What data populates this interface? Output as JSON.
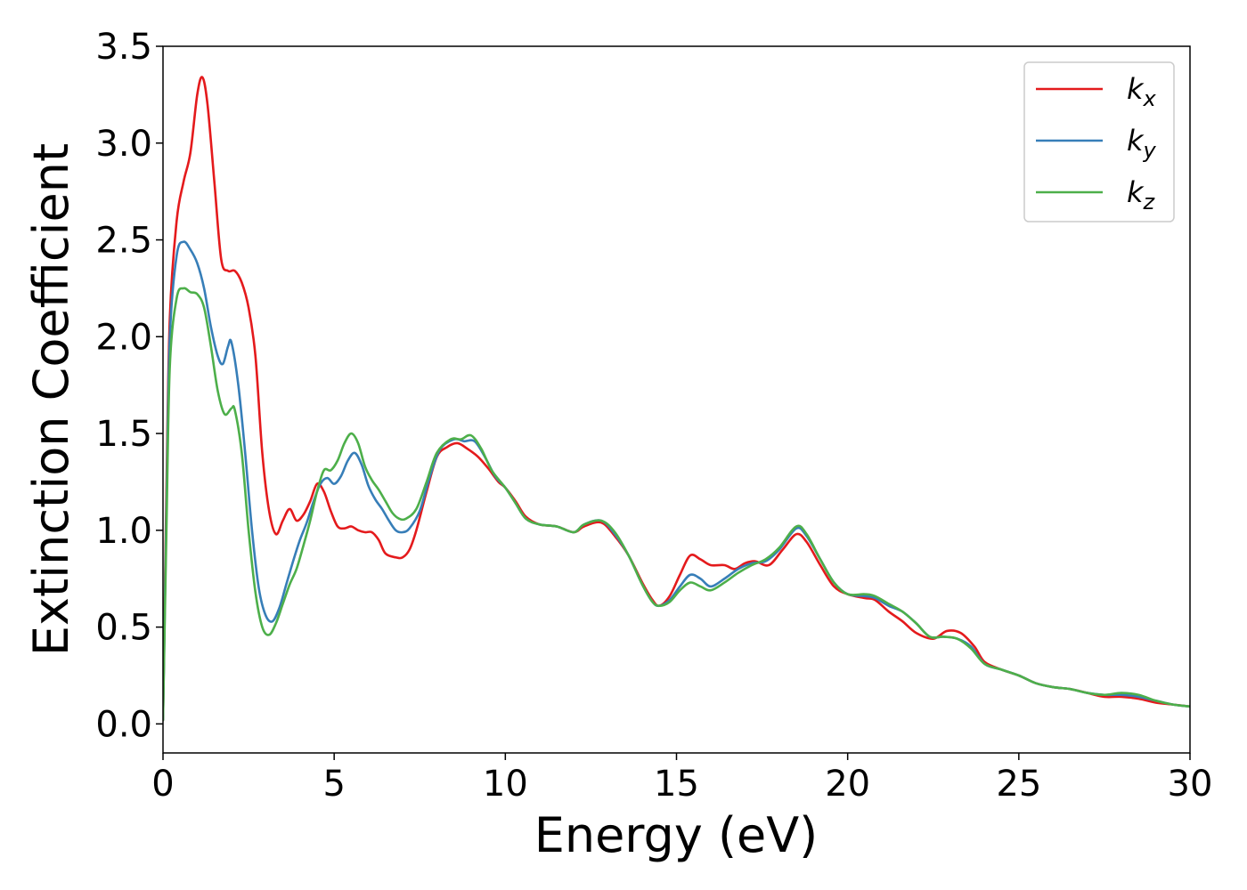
{
  "chart_data": {
    "type": "line",
    "xlabel": "Energy (eV)",
    "ylabel": "Extinction Coefficient",
    "xlim": [
      0,
      30
    ],
    "ylim": [
      -0.15,
      3.5
    ],
    "xticks": [
      0,
      5,
      10,
      15,
      20,
      25,
      30
    ],
    "yticks": [
      0.0,
      0.5,
      1.0,
      1.5,
      2.0,
      2.5,
      3.0,
      3.5
    ],
    "xtick_labels": [
      "0",
      "5",
      "10",
      "15",
      "20",
      "25",
      "30"
    ],
    "ytick_labels": [
      "0.0",
      "0.5",
      "1.0",
      "1.5",
      "2.0",
      "2.5",
      "3.0",
      "3.5"
    ],
    "grid": false,
    "legend_position": "top-right",
    "series": [
      {
        "name": "k",
        "subscript": "x",
        "color": "#e41a1c",
        "points": [
          [
            0,
            0.02
          ],
          [
            0.1,
            1.2
          ],
          [
            0.2,
            2.1
          ],
          [
            0.4,
            2.6
          ],
          [
            0.6,
            2.8
          ],
          [
            0.8,
            2.95
          ],
          [
            1.0,
            3.25
          ],
          [
            1.15,
            3.34
          ],
          [
            1.3,
            3.2
          ],
          [
            1.5,
            2.8
          ],
          [
            1.7,
            2.4
          ],
          [
            1.9,
            2.34
          ],
          [
            2.1,
            2.34
          ],
          [
            2.3,
            2.28
          ],
          [
            2.5,
            2.15
          ],
          [
            2.7,
            1.9
          ],
          [
            2.9,
            1.4
          ],
          [
            3.1,
            1.1
          ],
          [
            3.3,
            0.98
          ],
          [
            3.5,
            1.05
          ],
          [
            3.7,
            1.11
          ],
          [
            3.9,
            1.05
          ],
          [
            4.1,
            1.08
          ],
          [
            4.3,
            1.15
          ],
          [
            4.5,
            1.24
          ],
          [
            4.7,
            1.2
          ],
          [
            4.9,
            1.1
          ],
          [
            5.1,
            1.02
          ],
          [
            5.3,
            1.01
          ],
          [
            5.5,
            1.02
          ],
          [
            5.7,
            1.0
          ],
          [
            5.9,
            0.99
          ],
          [
            6.1,
            0.99
          ],
          [
            6.3,
            0.95
          ],
          [
            6.5,
            0.88
          ],
          [
            6.8,
            0.86
          ],
          [
            7.0,
            0.86
          ],
          [
            7.2,
            0.9
          ],
          [
            7.4,
            1.0
          ],
          [
            7.7,
            1.2
          ],
          [
            8.0,
            1.38
          ],
          [
            8.3,
            1.43
          ],
          [
            8.6,
            1.45
          ],
          [
            8.9,
            1.42
          ],
          [
            9.2,
            1.38
          ],
          [
            9.5,
            1.32
          ],
          [
            9.8,
            1.25
          ],
          [
            10.0,
            1.22
          ],
          [
            10.3,
            1.15
          ],
          [
            10.6,
            1.07
          ],
          [
            11.0,
            1.03
          ],
          [
            11.5,
            1.02
          ],
          [
            12.0,
            0.99
          ],
          [
            12.3,
            1.02
          ],
          [
            12.8,
            1.04
          ],
          [
            13.2,
            0.97
          ],
          [
            13.6,
            0.87
          ],
          [
            14.0,
            0.73
          ],
          [
            14.3,
            0.64
          ],
          [
            14.5,
            0.61
          ],
          [
            14.8,
            0.66
          ],
          [
            15.1,
            0.77
          ],
          [
            15.4,
            0.87
          ],
          [
            15.7,
            0.85
          ],
          [
            16.0,
            0.82
          ],
          [
            16.4,
            0.82
          ],
          [
            16.7,
            0.8
          ],
          [
            17.0,
            0.83
          ],
          [
            17.3,
            0.84
          ],
          [
            17.7,
            0.82
          ],
          [
            18.1,
            0.9
          ],
          [
            18.5,
            0.98
          ],
          [
            18.8,
            0.94
          ],
          [
            19.2,
            0.82
          ],
          [
            19.6,
            0.71
          ],
          [
            20.0,
            0.67
          ],
          [
            20.5,
            0.65
          ],
          [
            20.8,
            0.64
          ],
          [
            21.2,
            0.58
          ],
          [
            21.6,
            0.53
          ],
          [
            22.0,
            0.47
          ],
          [
            22.5,
            0.44
          ],
          [
            22.9,
            0.48
          ],
          [
            23.3,
            0.47
          ],
          [
            23.7,
            0.4
          ],
          [
            24.0,
            0.32
          ],
          [
            24.5,
            0.28
          ],
          [
            25.0,
            0.25
          ],
          [
            25.5,
            0.21
          ],
          [
            26.0,
            0.19
          ],
          [
            26.5,
            0.18
          ],
          [
            27.0,
            0.16
          ],
          [
            27.5,
            0.14
          ],
          [
            28.0,
            0.14
          ],
          [
            28.5,
            0.13
          ],
          [
            29.0,
            0.11
          ],
          [
            29.5,
            0.1
          ],
          [
            30.0,
            0.09
          ]
        ]
      },
      {
        "name": "k",
        "subscript": "y",
        "color": "#377eb8",
        "points": [
          [
            0,
            0.02
          ],
          [
            0.1,
            1.1
          ],
          [
            0.2,
            2.0
          ],
          [
            0.4,
            2.42
          ],
          [
            0.6,
            2.49
          ],
          [
            0.8,
            2.45
          ],
          [
            1.0,
            2.38
          ],
          [
            1.2,
            2.25
          ],
          [
            1.4,
            2.05
          ],
          [
            1.6,
            1.9
          ],
          [
            1.75,
            1.86
          ],
          [
            1.9,
            1.95
          ],
          [
            2.0,
            1.97
          ],
          [
            2.2,
            1.75
          ],
          [
            2.4,
            1.4
          ],
          [
            2.6,
            1.0
          ],
          [
            2.8,
            0.7
          ],
          [
            3.0,
            0.56
          ],
          [
            3.2,
            0.53
          ],
          [
            3.4,
            0.6
          ],
          [
            3.6,
            0.72
          ],
          [
            3.8,
            0.84
          ],
          [
            4.0,
            0.95
          ],
          [
            4.2,
            1.04
          ],
          [
            4.4,
            1.15
          ],
          [
            4.6,
            1.24
          ],
          [
            4.8,
            1.27
          ],
          [
            5.0,
            1.24
          ],
          [
            5.2,
            1.28
          ],
          [
            5.4,
            1.36
          ],
          [
            5.6,
            1.4
          ],
          [
            5.8,
            1.34
          ],
          [
            6.0,
            1.23
          ],
          [
            6.2,
            1.16
          ],
          [
            6.4,
            1.11
          ],
          [
            6.6,
            1.05
          ],
          [
            6.8,
            1.0
          ],
          [
            7.0,
            0.99
          ],
          [
            7.2,
            1.01
          ],
          [
            7.5,
            1.1
          ],
          [
            7.8,
            1.28
          ],
          [
            8.1,
            1.42
          ],
          [
            8.5,
            1.47
          ],
          [
            8.8,
            1.46
          ],
          [
            9.1,
            1.46
          ],
          [
            9.4,
            1.38
          ],
          [
            9.7,
            1.28
          ],
          [
            10.0,
            1.22
          ],
          [
            10.3,
            1.14
          ],
          [
            10.6,
            1.06
          ],
          [
            11.0,
            1.03
          ],
          [
            11.5,
            1.02
          ],
          [
            12.0,
            0.99
          ],
          [
            12.3,
            1.03
          ],
          [
            12.8,
            1.05
          ],
          [
            13.2,
            0.98
          ],
          [
            13.6,
            0.87
          ],
          [
            14.0,
            0.72
          ],
          [
            14.3,
            0.63
          ],
          [
            14.5,
            0.61
          ],
          [
            14.8,
            0.64
          ],
          [
            15.1,
            0.71
          ],
          [
            15.4,
            0.77
          ],
          [
            15.7,
            0.75
          ],
          [
            16.0,
            0.71
          ],
          [
            16.4,
            0.75
          ],
          [
            16.8,
            0.8
          ],
          [
            17.2,
            0.83
          ],
          [
            17.6,
            0.84
          ],
          [
            18.0,
            0.9
          ],
          [
            18.5,
            1.01
          ],
          [
            18.8,
            0.97
          ],
          [
            19.2,
            0.85
          ],
          [
            19.6,
            0.73
          ],
          [
            20.0,
            0.67
          ],
          [
            20.5,
            0.66
          ],
          [
            20.8,
            0.65
          ],
          [
            21.2,
            0.61
          ],
          [
            21.6,
            0.58
          ],
          [
            22.0,
            0.52
          ],
          [
            22.4,
            0.45
          ],
          [
            22.8,
            0.45
          ],
          [
            23.2,
            0.44
          ],
          [
            23.6,
            0.4
          ],
          [
            24.0,
            0.31
          ],
          [
            24.5,
            0.28
          ],
          [
            25.0,
            0.25
          ],
          [
            25.5,
            0.21
          ],
          [
            26.0,
            0.19
          ],
          [
            26.5,
            0.18
          ],
          [
            27.0,
            0.16
          ],
          [
            27.5,
            0.15
          ],
          [
            28.0,
            0.15
          ],
          [
            28.5,
            0.14
          ],
          [
            29.0,
            0.12
          ],
          [
            29.5,
            0.1
          ],
          [
            30.0,
            0.09
          ]
        ]
      },
      {
        "name": "k",
        "subscript": "z",
        "color": "#4daf4a",
        "points": [
          [
            0,
            0.02
          ],
          [
            0.1,
            1.0
          ],
          [
            0.2,
            1.85
          ],
          [
            0.4,
            2.2
          ],
          [
            0.6,
            2.25
          ],
          [
            0.8,
            2.23
          ],
          [
            1.0,
            2.22
          ],
          [
            1.2,
            2.15
          ],
          [
            1.4,
            1.95
          ],
          [
            1.6,
            1.72
          ],
          [
            1.8,
            1.6
          ],
          [
            2.0,
            1.63
          ],
          [
            2.1,
            1.62
          ],
          [
            2.3,
            1.4
          ],
          [
            2.5,
            1.0
          ],
          [
            2.7,
            0.68
          ],
          [
            2.9,
            0.5
          ],
          [
            3.1,
            0.46
          ],
          [
            3.3,
            0.52
          ],
          [
            3.5,
            0.62
          ],
          [
            3.7,
            0.72
          ],
          [
            3.9,
            0.8
          ],
          [
            4.1,
            0.92
          ],
          [
            4.3,
            1.05
          ],
          [
            4.5,
            1.2
          ],
          [
            4.7,
            1.31
          ],
          [
            4.9,
            1.31
          ],
          [
            5.1,
            1.36
          ],
          [
            5.3,
            1.45
          ],
          [
            5.5,
            1.5
          ],
          [
            5.7,
            1.45
          ],
          [
            5.9,
            1.33
          ],
          [
            6.1,
            1.26
          ],
          [
            6.3,
            1.21
          ],
          [
            6.5,
            1.15
          ],
          [
            6.7,
            1.09
          ],
          [
            6.9,
            1.06
          ],
          [
            7.1,
            1.06
          ],
          [
            7.4,
            1.11
          ],
          [
            7.7,
            1.25
          ],
          [
            8.0,
            1.4
          ],
          [
            8.4,
            1.47
          ],
          [
            8.7,
            1.47
          ],
          [
            9.0,
            1.49
          ],
          [
            9.3,
            1.42
          ],
          [
            9.6,
            1.31
          ],
          [
            10.0,
            1.22
          ],
          [
            10.3,
            1.14
          ],
          [
            10.6,
            1.06
          ],
          [
            11.0,
            1.03
          ],
          [
            11.5,
            1.02
          ],
          [
            12.0,
            0.99
          ],
          [
            12.3,
            1.03
          ],
          [
            12.8,
            1.05
          ],
          [
            13.2,
            0.99
          ],
          [
            13.6,
            0.87
          ],
          [
            14.0,
            0.72
          ],
          [
            14.3,
            0.63
          ],
          [
            14.5,
            0.61
          ],
          [
            14.8,
            0.63
          ],
          [
            15.1,
            0.69
          ],
          [
            15.4,
            0.73
          ],
          [
            15.7,
            0.71
          ],
          [
            16.0,
            0.69
          ],
          [
            16.4,
            0.73
          ],
          [
            16.8,
            0.78
          ],
          [
            17.2,
            0.82
          ],
          [
            17.6,
            0.85
          ],
          [
            18.0,
            0.91
          ],
          [
            18.5,
            1.02
          ],
          [
            18.8,
            0.98
          ],
          [
            19.2,
            0.85
          ],
          [
            19.6,
            0.73
          ],
          [
            20.0,
            0.67
          ],
          [
            20.5,
            0.67
          ],
          [
            20.8,
            0.66
          ],
          [
            21.2,
            0.62
          ],
          [
            21.6,
            0.58
          ],
          [
            22.0,
            0.52
          ],
          [
            22.4,
            0.45
          ],
          [
            22.8,
            0.45
          ],
          [
            23.2,
            0.44
          ],
          [
            23.6,
            0.39
          ],
          [
            24.0,
            0.31
          ],
          [
            24.5,
            0.28
          ],
          [
            25.0,
            0.25
          ],
          [
            25.5,
            0.21
          ],
          [
            26.0,
            0.19
          ],
          [
            26.5,
            0.18
          ],
          [
            27.0,
            0.16
          ],
          [
            27.5,
            0.15
          ],
          [
            28.0,
            0.16
          ],
          [
            28.5,
            0.15
          ],
          [
            29.0,
            0.12
          ],
          [
            29.5,
            0.1
          ],
          [
            30.0,
            0.09
          ]
        ]
      }
    ]
  }
}
